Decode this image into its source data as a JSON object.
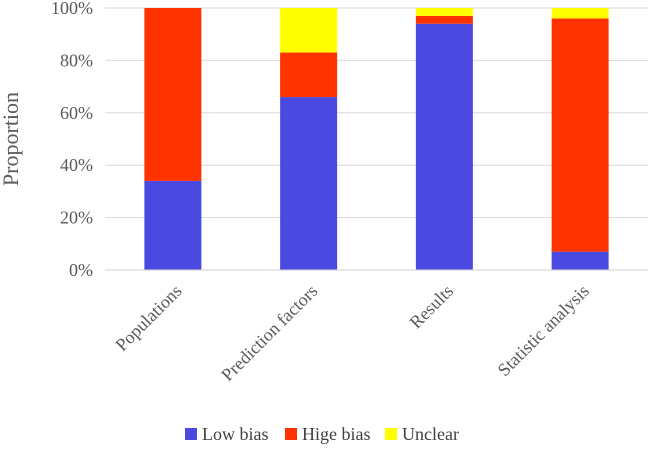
{
  "chart_data": {
    "type": "bar",
    "stacked": true,
    "percent": true,
    "categories": [
      "Populations",
      "Prediction factors",
      "Results",
      "Statistic analysis"
    ],
    "series": [
      {
        "name": "Low bias",
        "color": "#4a4ae0",
        "values": [
          34,
          66,
          94,
          7
        ]
      },
      {
        "name": "Hige bias",
        "color": "#ff3300",
        "values": [
          66,
          17,
          3,
          89
        ]
      },
      {
        "name": "Unclear",
        "color": "#ffff00",
        "values": [
          0,
          17,
          3,
          4
        ]
      }
    ],
    "ylabel": "Proportion",
    "xlabel": "",
    "ylim": [
      0,
      100
    ],
    "yticks": [
      "0%",
      "20%",
      "40%",
      "60%",
      "80%",
      "100%"
    ],
    "grid": true,
    "legend_position": "bottom"
  }
}
